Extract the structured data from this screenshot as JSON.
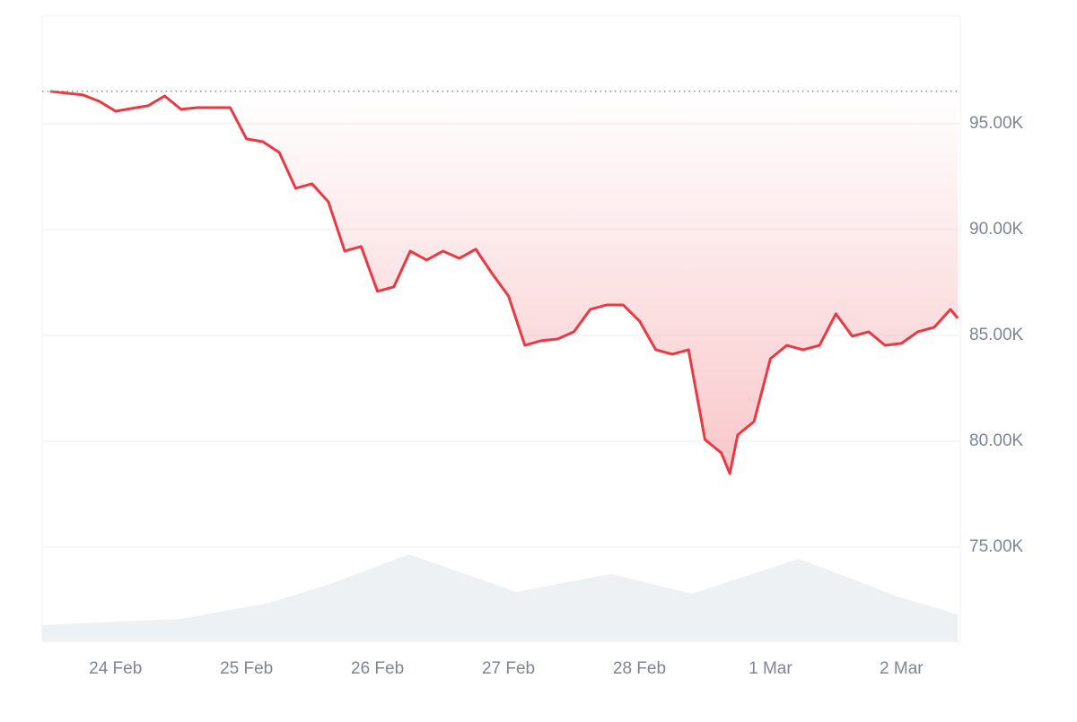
{
  "chart_data": {
    "type": "line",
    "x": [
      -0.5,
      -0.375,
      -0.25,
      -0.125,
      0,
      0.125,
      0.25,
      0.375,
      0.5,
      0.625,
      0.75,
      0.875,
      1,
      1.125,
      1.25,
      1.375,
      1.5,
      1.625,
      1.75,
      1.875,
      2,
      2.125,
      2.25,
      2.375,
      2.5,
      2.625,
      2.75,
      2.875,
      3,
      3.125,
      3.25,
      3.375,
      3.5,
      3.625,
      3.75,
      3.875,
      4,
      4.125,
      4.25,
      4.375,
      4.5,
      4.625,
      4.69,
      4.75,
      4.875,
      5,
      5.125,
      5.25,
      5.375,
      5.5,
      5.625,
      5.75,
      5.875,
      6,
      6.125,
      6.25,
      6.375,
      6.43
    ],
    "series": [
      {
        "color": "#ea3943",
        "up_color": "#16c784",
        "values": [
          96530,
          96440,
          96360,
          96060,
          95590,
          95720,
          95850,
          96310,
          95680,
          95760,
          95760,
          95760,
          94280,
          94150,
          93640,
          91950,
          92160,
          91310,
          88980,
          89200,
          87080,
          87290,
          88980,
          88560,
          88980,
          88640,
          89070,
          87920,
          86860,
          84530,
          84750,
          84830,
          85170,
          86230,
          86440,
          86440,
          85680,
          84320,
          84110,
          84320,
          80080,
          79450,
          78470,
          80300,
          80930,
          83900,
          84530,
          84320,
          84530,
          86020,
          84960,
          85170,
          84530,
          84620,
          85170,
          85380,
          86230,
          85810
        ]
      }
    ],
    "baseline": 96530,
    "volume": {
      "color": "#eef1f4",
      "x": [
        -0.56,
        0.5,
        1.18,
        1.66,
        2.24,
        3.06,
        3.78,
        4.4,
        5.22,
        5.97,
        6.43
      ],
      "values": [
        71315,
        71610,
        72375,
        73300,
        74660,
        72880,
        73730,
        72800,
        74450,
        72670,
        71820
      ]
    },
    "xlim": [
      -0.56,
      6.45
    ],
    "xticks": [
      {
        "value": 0,
        "label": "24 Feb"
      },
      {
        "value": 1,
        "label": "25 Feb"
      },
      {
        "value": 2,
        "label": "26 Feb"
      },
      {
        "value": 3,
        "label": "27 Feb"
      },
      {
        "value": 4,
        "label": "28 Feb"
      },
      {
        "value": 5,
        "label": "1 Mar"
      },
      {
        "value": 6,
        "label": "2 Mar"
      }
    ],
    "ylim": [
      70550,
      100080
    ],
    "yticks": [
      {
        "value": 75000,
        "label": "75.00K"
      },
      {
        "value": 80000,
        "label": "80.00K"
      },
      {
        "value": 85000,
        "label": "85.00K"
      },
      {
        "value": 90000,
        "label": "90.00K"
      },
      {
        "value": 95000,
        "label": "95.00K"
      }
    ],
    "grid": true
  }
}
